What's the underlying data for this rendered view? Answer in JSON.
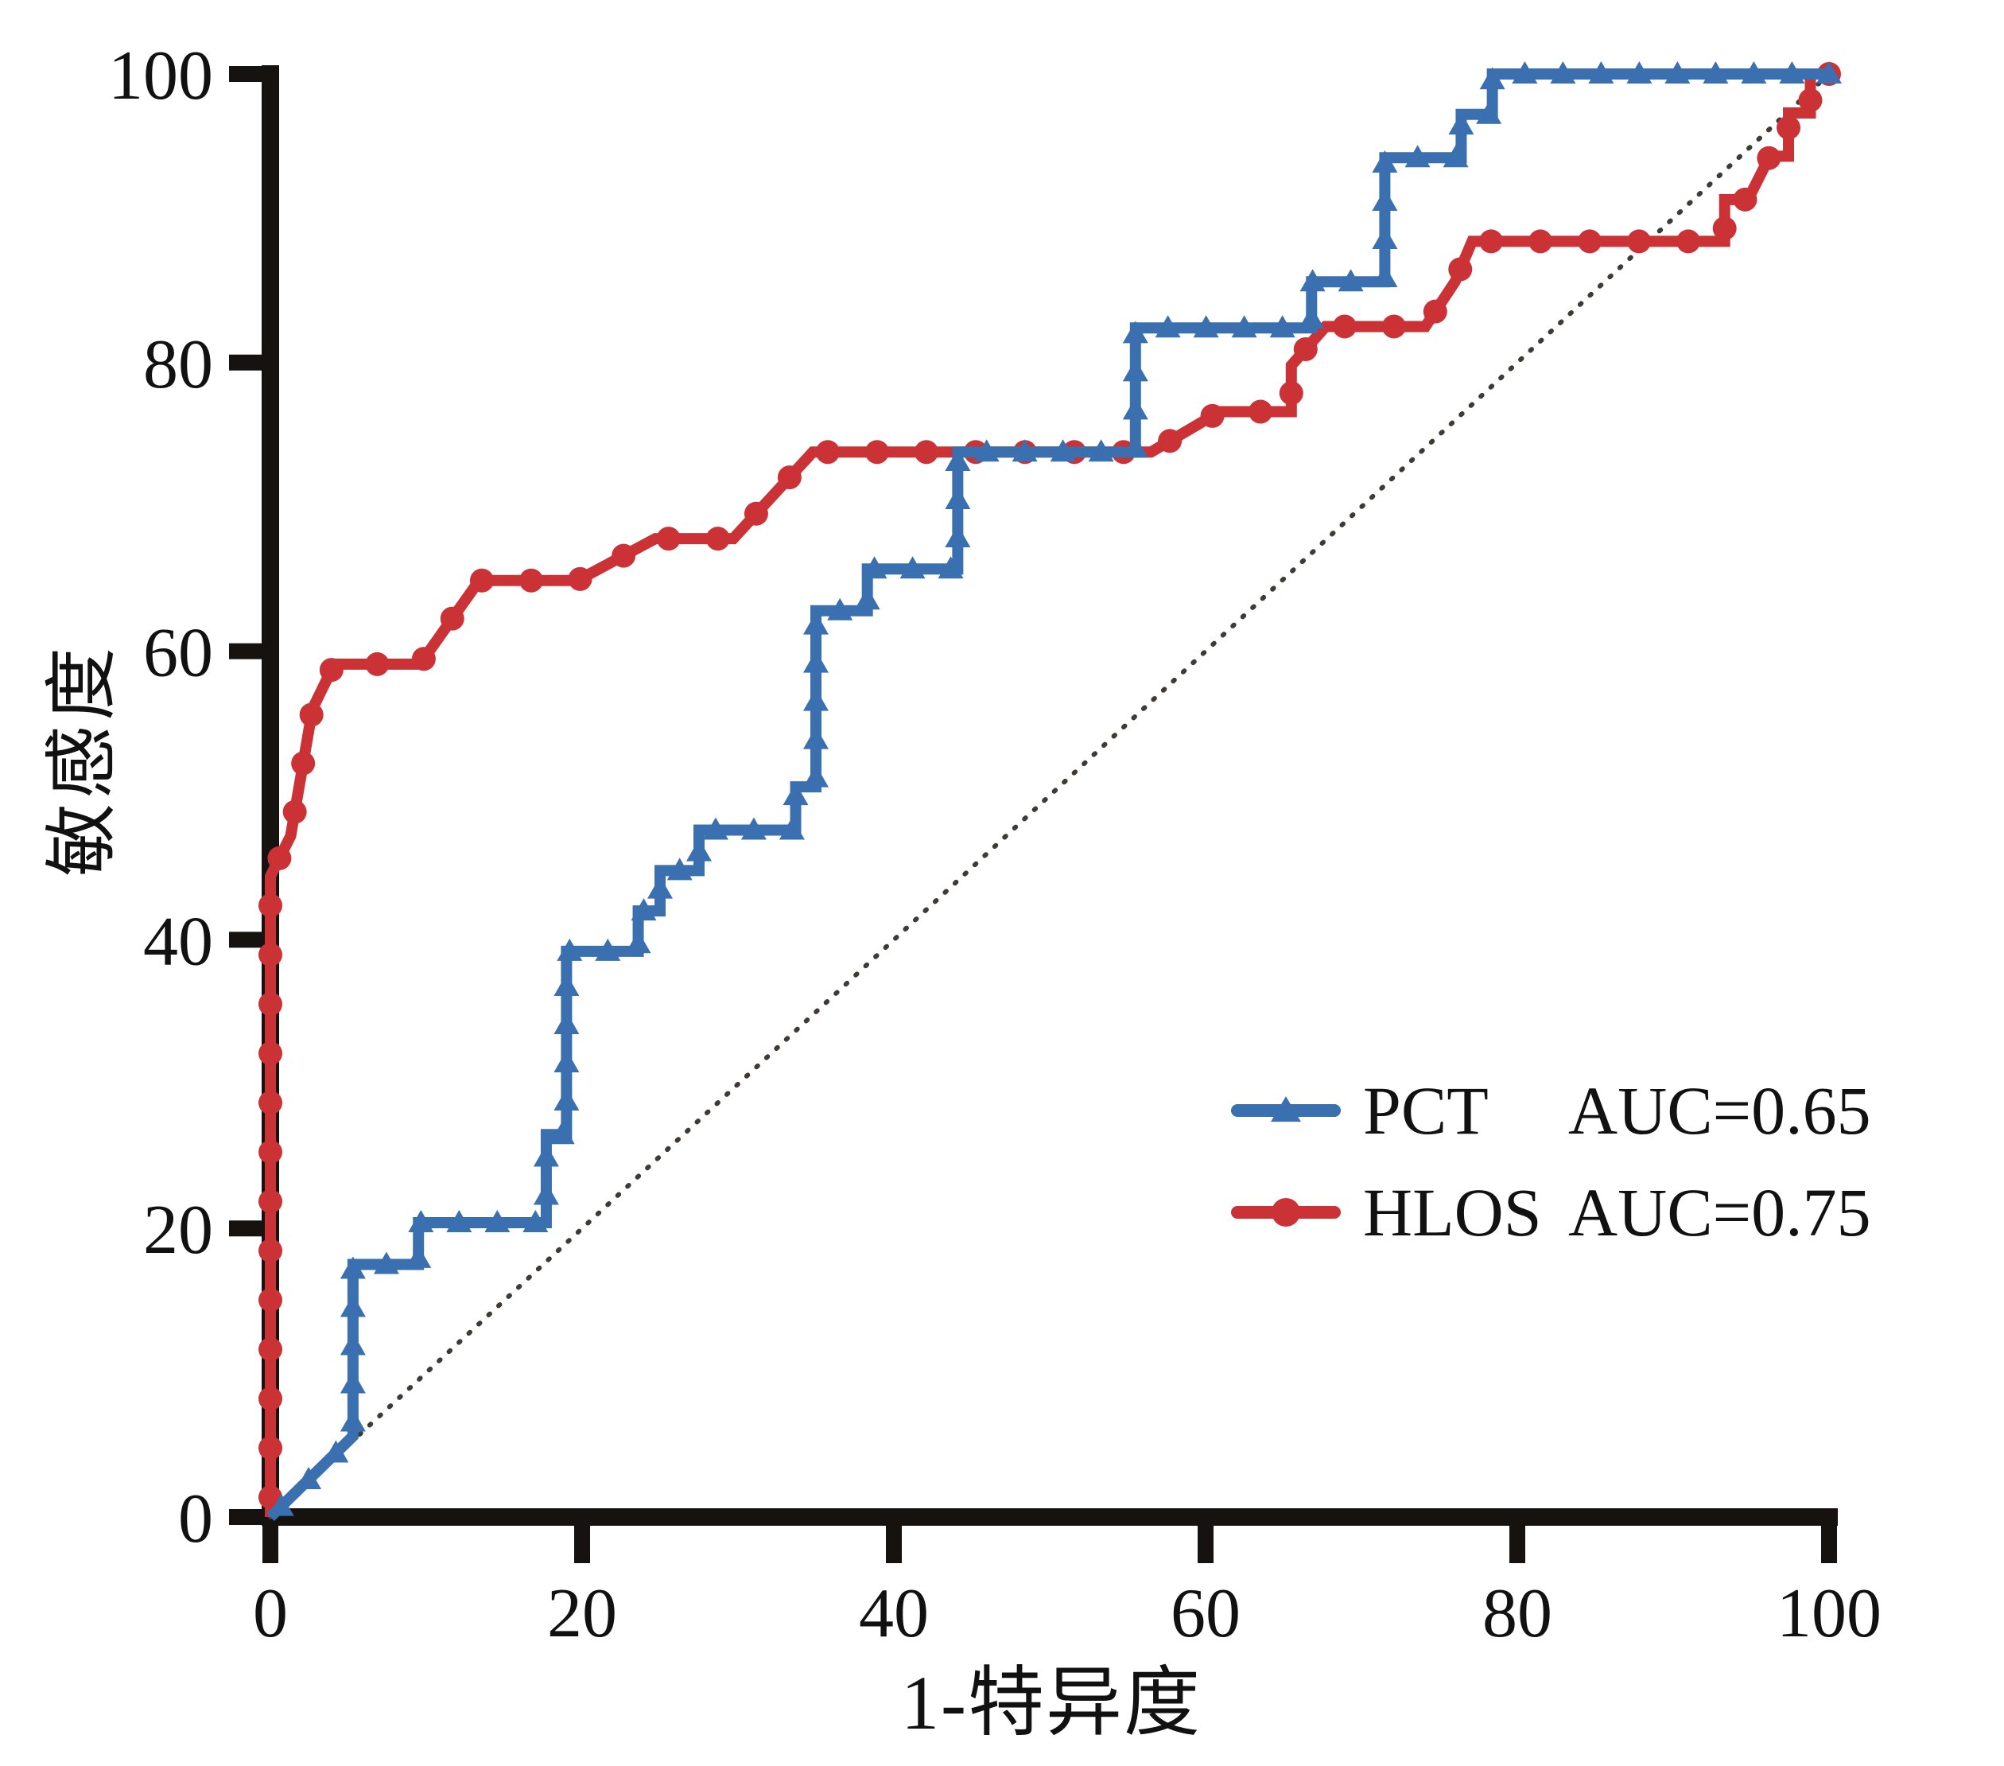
{
  "figure": {
    "title": "",
    "x_axis_label": "1-特异度",
    "y_axis_label": "敏感度",
    "x_ticks": [
      "0",
      "20",
      "40",
      "60",
      "80",
      "100"
    ],
    "y_ticks": [
      "0",
      "20",
      "40",
      "60",
      "80",
      "100"
    ]
  },
  "legend": [
    {
      "label": "PCT",
      "auc": "AUC=0.65",
      "color": "#3a6fb0",
      "marker": "triangle"
    },
    {
      "label": "HLOS",
      "auc": "AUC=0.75",
      "color": "#cb3236",
      "marker": "circle"
    }
  ],
  "colors": {
    "pct_blue": "#3a6fb0",
    "hlos_red": "#cb3236",
    "axis_black": "#151210",
    "reference_line": "#3f3a36",
    "text": "#111111",
    "background": "#ffffff"
  },
  "chart_data": {
    "type": "line",
    "subtype": "roc-curve",
    "title": "",
    "xlabel": "1-特异度",
    "ylabel": "敏感度",
    "xlim": [
      0,
      100
    ],
    "ylim": [
      0,
      100
    ],
    "x_ticks": [
      0,
      20,
      40,
      60,
      80,
      100
    ],
    "y_ticks": [
      0,
      20,
      40,
      60,
      80,
      100
    ],
    "grid": false,
    "legend_position": "lower right",
    "reference_line": {
      "from": [
        0,
        0
      ],
      "to": [
        100,
        100
      ],
      "style": "dotted"
    },
    "series": [
      {
        "name": "PCT",
        "auc": 0.65,
        "color": "#3a6fb0",
        "marker": "triangle",
        "points": [
          [
            0,
            0
          ],
          [
            5.3,
            5.6
          ],
          [
            5.3,
            17.5
          ],
          [
            9.5,
            17.5
          ],
          [
            9.5,
            20.4
          ],
          [
            17.7,
            20.4
          ],
          [
            17.7,
            26.5
          ],
          [
            19.0,
            26.5
          ],
          [
            19.0,
            39.2
          ],
          [
            23.6,
            39.2
          ],
          [
            23.6,
            42.0
          ],
          [
            25.0,
            42.0
          ],
          [
            25.0,
            44.8
          ],
          [
            27.5,
            44.8
          ],
          [
            27.5,
            47.6
          ],
          [
            33.7,
            47.6
          ],
          [
            33.7,
            50.6
          ],
          [
            35.0,
            50.6
          ],
          [
            35.0,
            62.8
          ],
          [
            38.3,
            62.8
          ],
          [
            38.3,
            65.7
          ],
          [
            44.1,
            65.7
          ],
          [
            44.1,
            73.8
          ],
          [
            55.5,
            73.8
          ],
          [
            55.5,
            82.4
          ],
          [
            66.8,
            82.4
          ],
          [
            66.8,
            85.6
          ],
          [
            71.5,
            85.6
          ],
          [
            71.5,
            94.2
          ],
          [
            76.4,
            94.2
          ],
          [
            76.4,
            97.2
          ],
          [
            78.4,
            97.2
          ],
          [
            78.4,
            100
          ],
          [
            100,
            100
          ]
        ]
      },
      {
        "name": "HLOS",
        "auc": 0.75,
        "color": "#cb3236",
        "marker": "circle",
        "points": [
          [
            0,
            0
          ],
          [
            0,
            44.4
          ],
          [
            1.3,
            47.2
          ],
          [
            2.7,
            56.0
          ],
          [
            4.1,
            59.1
          ],
          [
            9.6,
            59.1
          ],
          [
            13.4,
            64.9
          ],
          [
            19.7,
            64.9
          ],
          [
            24.7,
            67.8
          ],
          [
            29.7,
            67.8
          ],
          [
            34.8,
            73.8
          ],
          [
            56.5,
            73.8
          ],
          [
            60.9,
            76.6
          ],
          [
            65.5,
            76.6
          ],
          [
            65.5,
            79.8
          ],
          [
            67.7,
            82.5
          ],
          [
            74.1,
            82.5
          ],
          [
            76.0,
            85.6
          ],
          [
            77.1,
            88.4
          ],
          [
            93.3,
            88.4
          ],
          [
            93.3,
            91.3
          ],
          [
            94.8,
            91.3
          ],
          [
            96.2,
            94.3
          ],
          [
            97.4,
            94.3
          ],
          [
            97.4,
            97.3
          ],
          [
            98.8,
            97.3
          ],
          [
            98.8,
            100
          ],
          [
            100,
            100
          ]
        ]
      }
    ]
  }
}
